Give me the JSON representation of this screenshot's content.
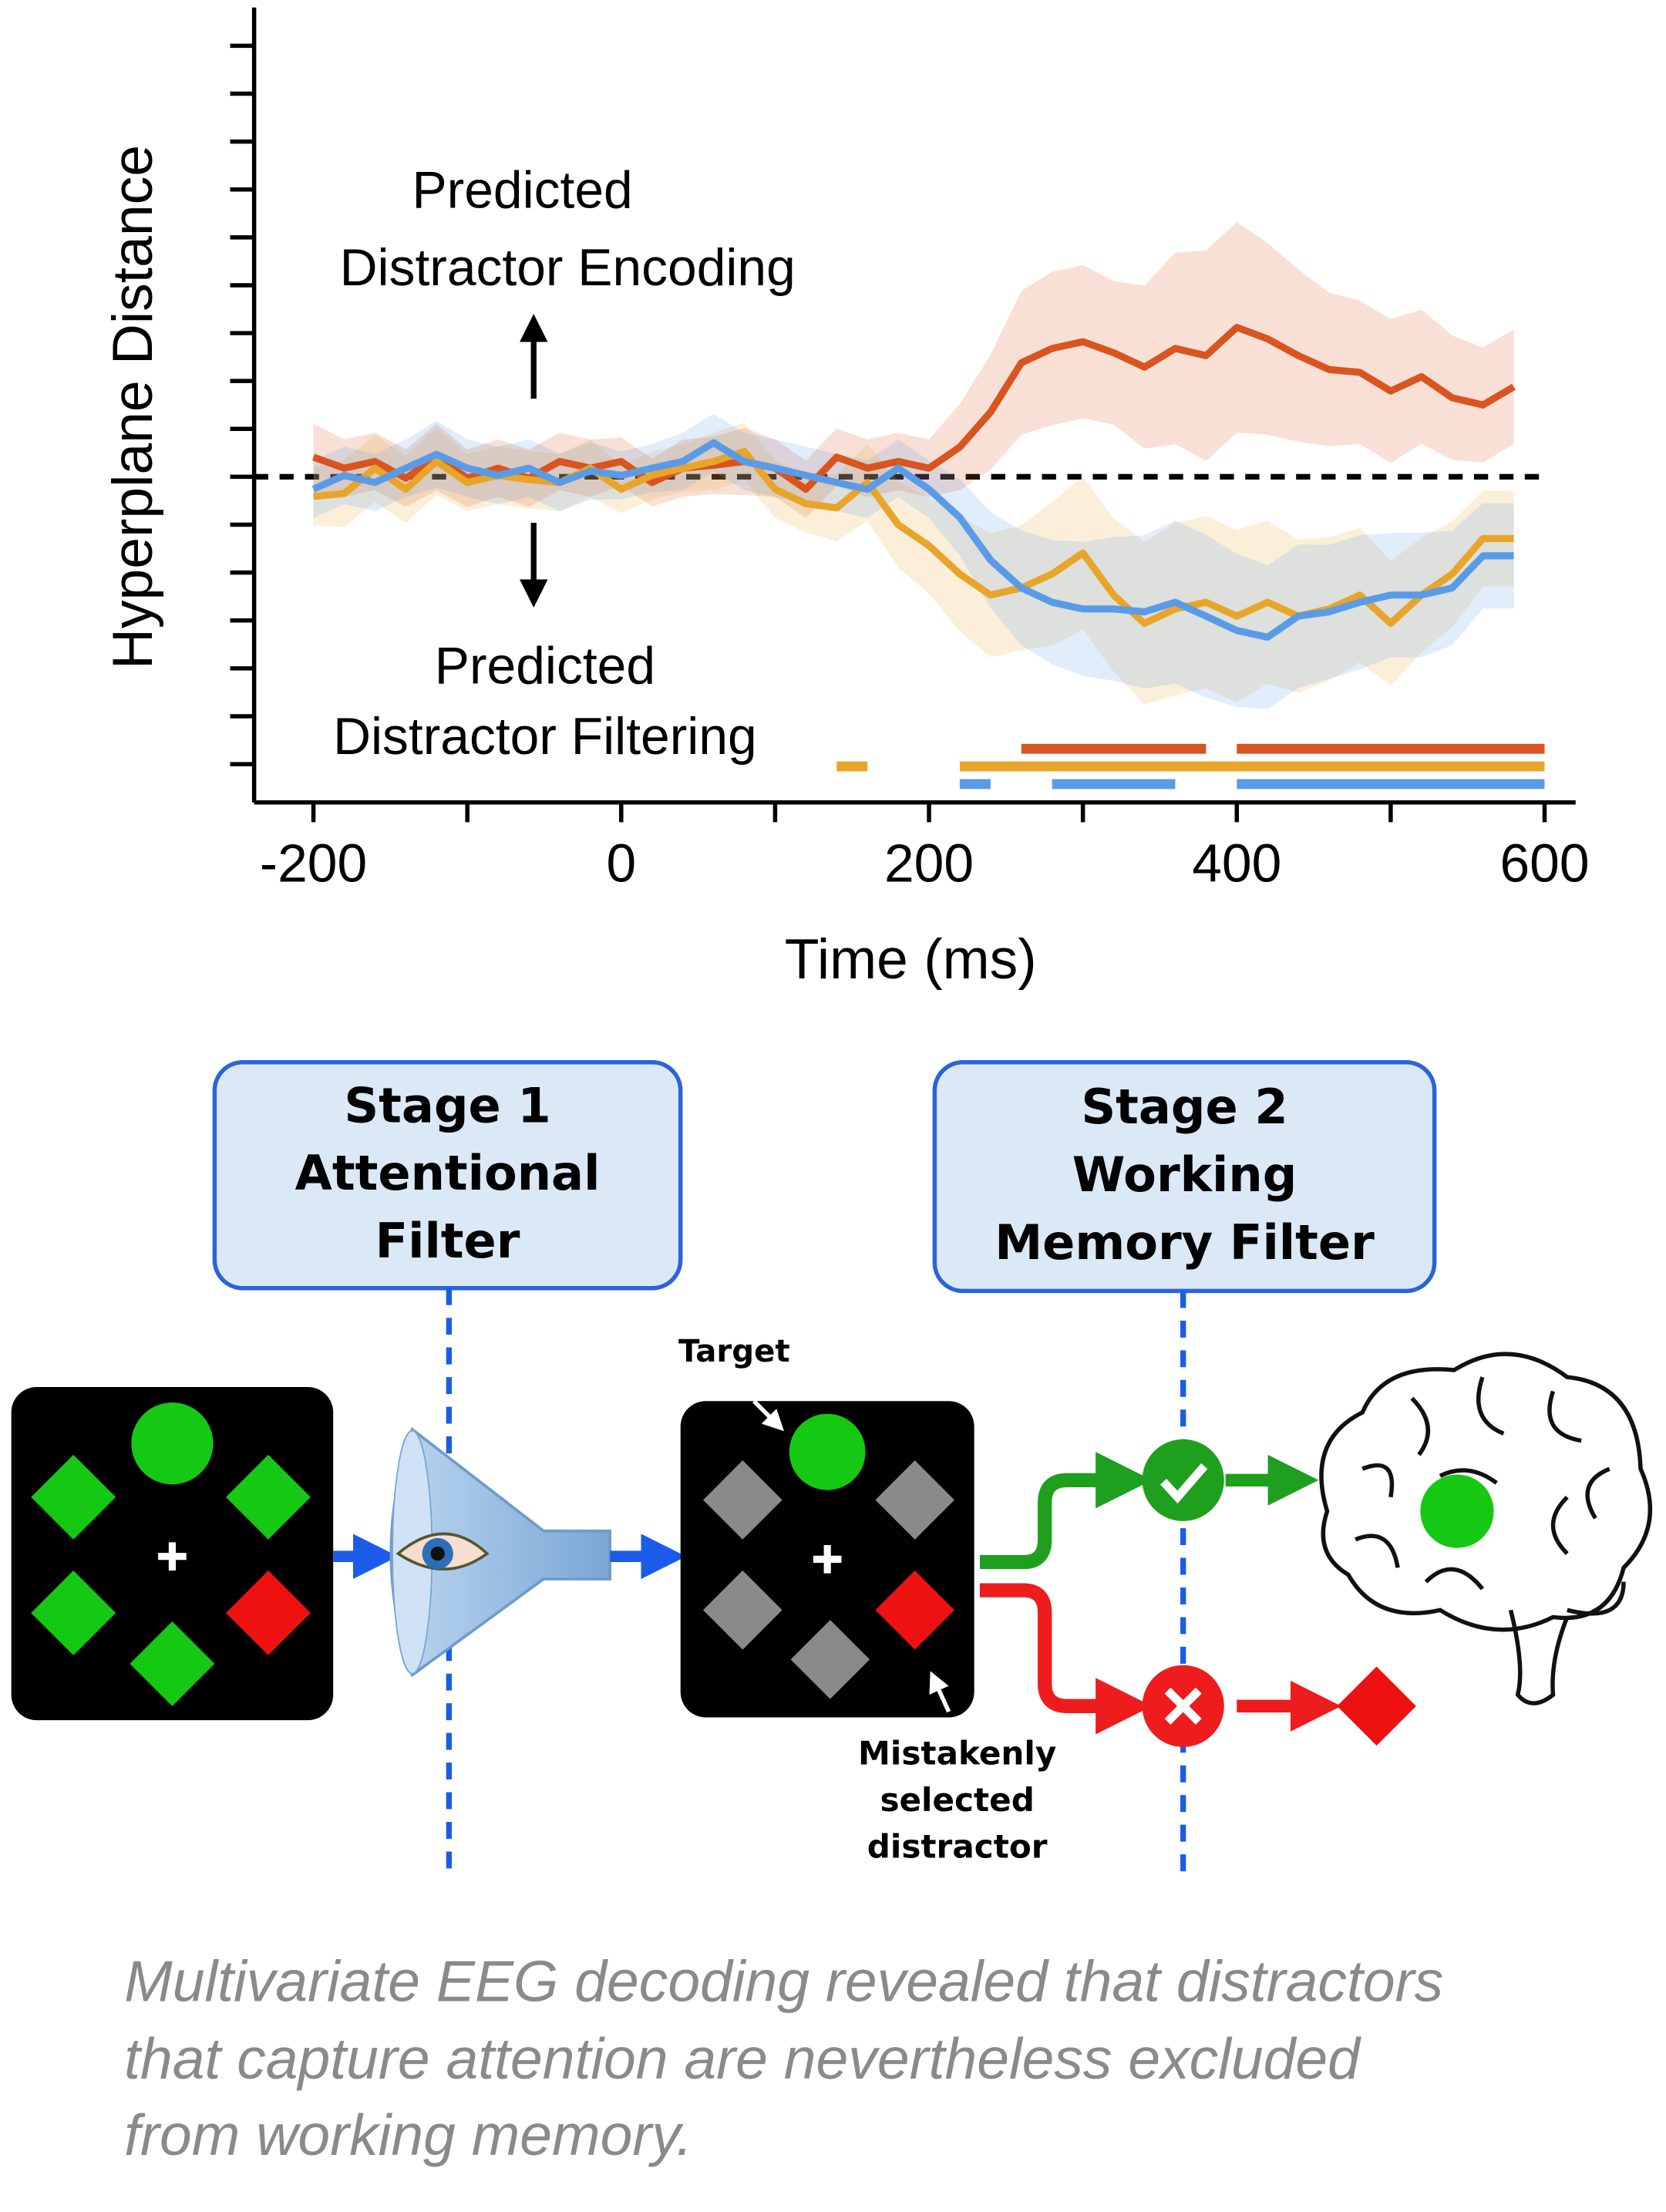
{
  "chart_data": {
    "type": "line",
    "xlabel": "Time (ms)",
    "ylabel": "Hyperplane Distance",
    "annotations": [
      {
        "lines": [
          "Predicted",
          "Distractor Encoding"
        ],
        "direction": "up"
      },
      {
        "lines": [
          "Predicted",
          "Distractor Filtering"
        ],
        "direction": "down"
      }
    ],
    "x": [
      -200,
      -180,
      -160,
      -140,
      -120,
      -100,
      -80,
      -60,
      -40,
      -20,
      0,
      20,
      40,
      60,
      80,
      100,
      120,
      140,
      160,
      180,
      200,
      220,
      240,
      260,
      280,
      300,
      320,
      340,
      360,
      380,
      400,
      420,
      440,
      460,
      480,
      500,
      520,
      540,
      560,
      580
    ],
    "series": [
      {
        "color": "#d9541e",
        "values": [
          0.41,
          0.18,
          0.32,
          -0.03,
          0.41,
          -0.03,
          0.18,
          -0.03,
          0.32,
          0.18,
          0.32,
          -0.12,
          0.18,
          0.24,
          0.32,
          0.18,
          -0.26,
          0.41,
          0.18,
          0.32,
          0.18,
          0.62,
          1.35,
          2.38,
          2.68,
          2.82,
          2.59,
          2.29,
          2.68,
          2.53,
          3.12,
          2.88,
          2.53,
          2.24,
          2.18,
          1.79,
          2.09,
          1.65,
          1.5,
          1.88
        ],
        "error": [
          0.7,
          0.6,
          0.6,
          0.6,
          0.7,
          0.6,
          0.6,
          0.6,
          0.6,
          0.6,
          0.5,
          0.5,
          0.6,
          0.6,
          0.7,
          0.6,
          0.6,
          0.6,
          0.6,
          0.6,
          0.6,
          0.9,
          1.2,
          1.5,
          1.6,
          1.6,
          1.5,
          1.7,
          2.0,
          2.2,
          2.2,
          2.0,
          1.8,
          1.6,
          1.5,
          1.5,
          1.4,
          1.3,
          1.2,
          1.2
        ],
        "significant": [
          [
            260,
            380
          ],
          [
            400,
            600
          ]
        ]
      },
      {
        "color": "#e8a52a",
        "values": [
          -0.41,
          -0.35,
          0.18,
          -0.26,
          0.32,
          -0.12,
          0.03,
          -0.06,
          -0.12,
          0.18,
          -0.26,
          0.03,
          0.18,
          0.32,
          0.53,
          -0.26,
          -0.56,
          -0.65,
          -0.12,
          -1.0,
          -1.44,
          -2.03,
          -2.47,
          -2.32,
          -2.03,
          -1.59,
          -2.47,
          -3.06,
          -2.76,
          -2.62,
          -2.91,
          -2.62,
          -2.91,
          -2.76,
          -2.47,
          -3.06,
          -2.47,
          -2.03,
          -1.29,
          -1.29
        ],
        "error": [
          0.6,
          0.7,
          0.7,
          0.7,
          0.7,
          0.6,
          0.6,
          0.6,
          0.6,
          0.6,
          0.5,
          0.5,
          0.5,
          0.6,
          0.6,
          0.6,
          0.6,
          0.7,
          0.8,
          0.9,
          1.0,
          1.2,
          1.3,
          1.3,
          1.5,
          1.6,
          1.6,
          1.7,
          1.8,
          1.8,
          1.8,
          1.7,
          1.6,
          1.5,
          1.4,
          1.3,
          1.2,
          1.1,
          1.0,
          1.0
        ],
        "significant": [
          [
            140,
            160
          ],
          [
            220,
            600
          ]
        ]
      },
      {
        "color": "#5a9be8",
        "values": [
          -0.26,
          0.03,
          -0.12,
          0.18,
          0.47,
          0.18,
          0.03,
          0.18,
          -0.12,
          0.12,
          0.03,
          0.18,
          0.32,
          0.71,
          0.32,
          0.18,
          0.03,
          -0.12,
          -0.26,
          0.18,
          -0.26,
          -0.85,
          -1.74,
          -2.32,
          -2.62,
          -2.76,
          -2.76,
          -2.82,
          -2.62,
          -2.91,
          -3.21,
          -3.35,
          -2.91,
          -2.82,
          -2.62,
          -2.47,
          -2.47,
          -2.32,
          -1.65,
          -1.65
        ],
        "error": [
          0.6,
          0.6,
          0.6,
          0.6,
          0.7,
          0.6,
          0.6,
          0.6,
          0.6,
          0.6,
          0.5,
          0.5,
          0.6,
          0.6,
          0.6,
          0.6,
          0.6,
          0.6,
          0.6,
          0.6,
          0.6,
          0.8,
          1.0,
          1.2,
          1.3,
          1.4,
          1.5,
          1.6,
          1.7,
          1.7,
          1.6,
          1.5,
          1.5,
          1.4,
          1.4,
          1.3,
          1.3,
          1.2,
          1.1,
          1.1
        ],
        "significant": [
          [
            220,
            240
          ],
          [
            280,
            360
          ],
          [
            400,
            600
          ]
        ]
      }
    ],
    "xlim": [
      -200,
      600
    ],
    "xticks": [
      -200,
      0,
      200,
      400,
      600
    ],
    "ylim": [
      -6.8,
      9.8
    ],
    "yticks": [
      -6,
      -5,
      -4,
      -3,
      -2,
      -1,
      0,
      1,
      2,
      3,
      4,
      5,
      6,
      7,
      8,
      9
    ],
    "hline": 0
  },
  "diagram": {
    "stages": [
      {
        "lines": [
          "Stage 1",
          "Attentional",
          "Filter"
        ]
      },
      {
        "lines": [
          "Stage 2",
          "Working",
          "Memory Filter"
        ]
      }
    ],
    "target_label": "Target",
    "distractor_label": [
      "Mistakenly",
      "selected",
      "distractor"
    ]
  },
  "caption": [
    "Multivariate EEG decoding revealed that distractors",
    "that capture attention are nevertheless excluded",
    "from working memory."
  ]
}
